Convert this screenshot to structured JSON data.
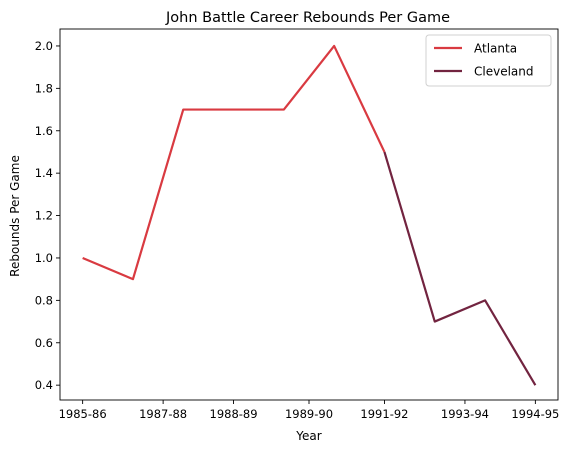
{
  "chart_data": {
    "type": "line",
    "title": "John Battle  Career Rebounds Per Game",
    "xlabel": "Year",
    "ylabel": "Rebounds Per Game",
    "x": [
      "1985-86",
      "1986-87",
      "1987-88",
      "1988-89",
      "1989-90",
      "1990-91",
      "1991-92",
      "1992-93",
      "1993-94",
      "1994-95"
    ],
    "x_tick_labels": [
      "1985-86",
      "1987-88",
      "1988-89",
      "1989-90",
      "1991-92",
      "1993-94",
      "1994-95"
    ],
    "x_tick_positions": [
      0,
      1.6,
      3,
      4.5,
      6,
      7.6,
      9
    ],
    "ylim": [
      0.33,
      2.08
    ],
    "yticks": [
      0.4,
      0.6,
      0.8,
      1.0,
      1.2,
      1.4,
      1.6,
      1.8,
      2.0
    ],
    "grid": false,
    "legend_position": "top-right",
    "series": [
      {
        "name": "Atlanta",
        "color": "#d93a41",
        "points": [
          [
            0,
            1.0
          ],
          [
            1,
            0.9
          ],
          [
            2,
            1.7
          ],
          [
            3,
            1.7
          ],
          [
            4,
            1.7
          ],
          [
            5,
            2.0
          ],
          [
            6,
            1.5
          ]
        ]
      },
      {
        "name": "Cleveland",
        "color": "#722440",
        "points": [
          [
            6,
            1.5
          ],
          [
            7,
            0.7
          ],
          [
            8,
            0.8
          ],
          [
            9,
            0.4
          ]
        ]
      }
    ]
  }
}
